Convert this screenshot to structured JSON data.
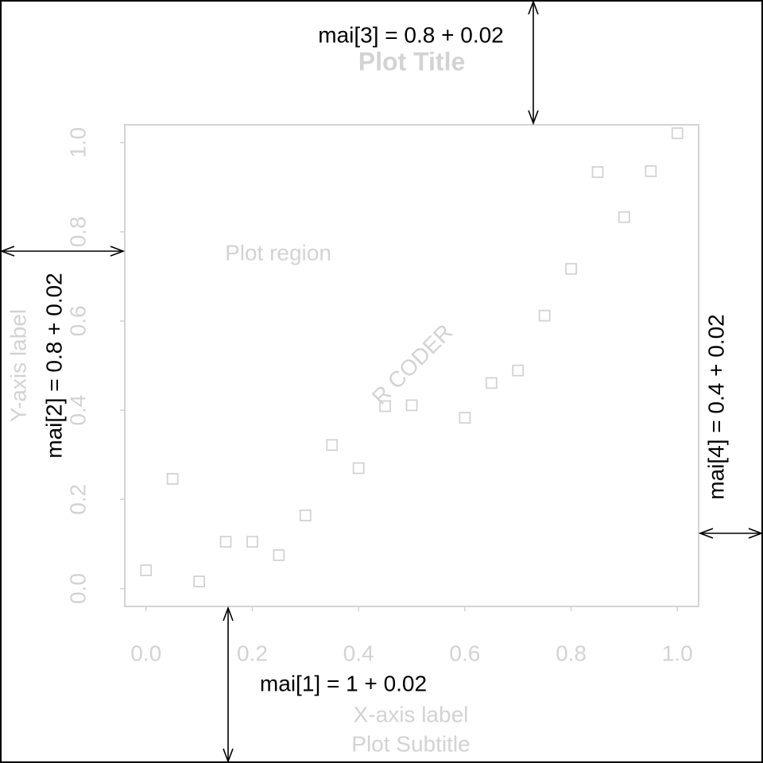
{
  "chart_data": {
    "type": "scatter",
    "title": "Plot Title",
    "subtitle": "Plot Subtitle",
    "x_label": "X-axis label",
    "y_label": "Y-axis label",
    "color": "#d3d3d3",
    "x": [
      0,
      0.05,
      0.1,
      0.15,
      0.2,
      0.25,
      0.3,
      0.35,
      0.4,
      0.45,
      0.5,
      0.6,
      0.65,
      0.7,
      0.75,
      0.8,
      0.85,
      0.9,
      0.95,
      1.0
    ],
    "values": [
      0.041,
      0.246,
      0.016,
      0.105,
      0.105,
      0.075,
      0.164,
      0.322,
      0.27,
      0.409,
      0.411,
      0.383,
      0.461,
      0.489,
      0.612,
      0.717,
      0.934,
      0.833,
      0.936,
      1.021
    ],
    "xlim": [
      -0.04,
      1.04
    ],
    "ylim": [
      -0.04,
      1.04
    ],
    "xticks": [
      {
        "value": 0,
        "label": "0.0"
      },
      0.2,
      0.4,
      0.6,
      0.8,
      {
        "value": 1,
        "label": "1.0"
      }
    ],
    "yticks": [
      {
        "value": 0,
        "label": "0.0"
      },
      0.2,
      0.4,
      0.6,
      0.8,
      {
        "value": 1,
        "label": "1.0"
      }
    ],
    "annotations": [
      "mai[3] = 0.8 + 0.02",
      "Plot region",
      "R CODER",
      "mai[2] = 0.8 + 0.02",
      "mai[4] = 0.4 + 0.02",
      "mai[1] = 1 + 0.02"
    ]
  }
}
